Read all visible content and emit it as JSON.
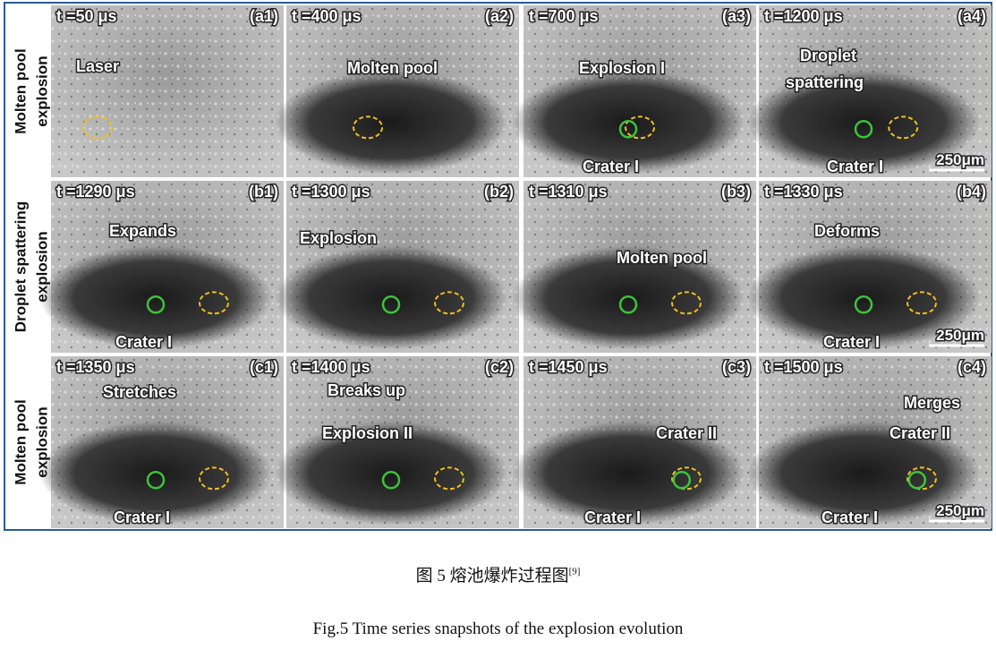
{
  "figure": {
    "rows": [
      {
        "label_lines": [
          "Molten pool",
          "explosion"
        ],
        "panels": [
          {
            "time": "t =50 μs",
            "tag": "(a1)",
            "notes": [
              "Laser"
            ]
          },
          {
            "time": "t =400 μs",
            "tag": "(a2)",
            "notes": [
              "Molten pool"
            ]
          },
          {
            "time": "t =700 μs",
            "tag": "(a3)",
            "notes": [
              "Explosion I",
              "Crater I"
            ]
          },
          {
            "time": "t =1200 μs",
            "tag": "(a4)",
            "notes": [
              "Droplet",
              "spattering",
              "Crater I"
            ]
          }
        ]
      },
      {
        "label_lines": [
          "Droplet spattering",
          "explosion"
        ],
        "panels": [
          {
            "time": "t =1290 μs",
            "tag": "(b1)",
            "notes": [
              "Expands",
              "Crater I"
            ]
          },
          {
            "time": "t =1300 μs",
            "tag": "(b2)",
            "notes": [
              "Explosion"
            ]
          },
          {
            "time": "t =1310 μs",
            "tag": "(b3)",
            "notes": [
              "Molten pool"
            ]
          },
          {
            "time": "t =1330 μs",
            "tag": "(b4)",
            "notes": [
              "Deforms",
              "Crater I"
            ]
          }
        ]
      },
      {
        "label_lines": [
          "Molten pool",
          "explosion"
        ],
        "panels": [
          {
            "time": "t =1350 μs",
            "tag": "(c1)",
            "notes": [
              "Stretches",
              "Crater I"
            ]
          },
          {
            "time": "t =1400 μs",
            "tag": "(c2)",
            "notes": [
              "Breaks up",
              "Explosion II"
            ]
          },
          {
            "time": "t =1450 μs",
            "tag": "(c3)",
            "notes": [
              "Crater II",
              "Crater I"
            ]
          },
          {
            "time": "t =1500 μs",
            "tag": "(c4)",
            "notes": [
              "Merges",
              "Crater II",
              "Crater I"
            ]
          }
        ]
      }
    ],
    "scale_bar": "250μm"
  },
  "caption": {
    "zh": "图 5 熔池爆炸过程图",
    "zh_ref": "[9]",
    "en": "Fig.5 Time series snapshots of the explosion evolution"
  }
}
